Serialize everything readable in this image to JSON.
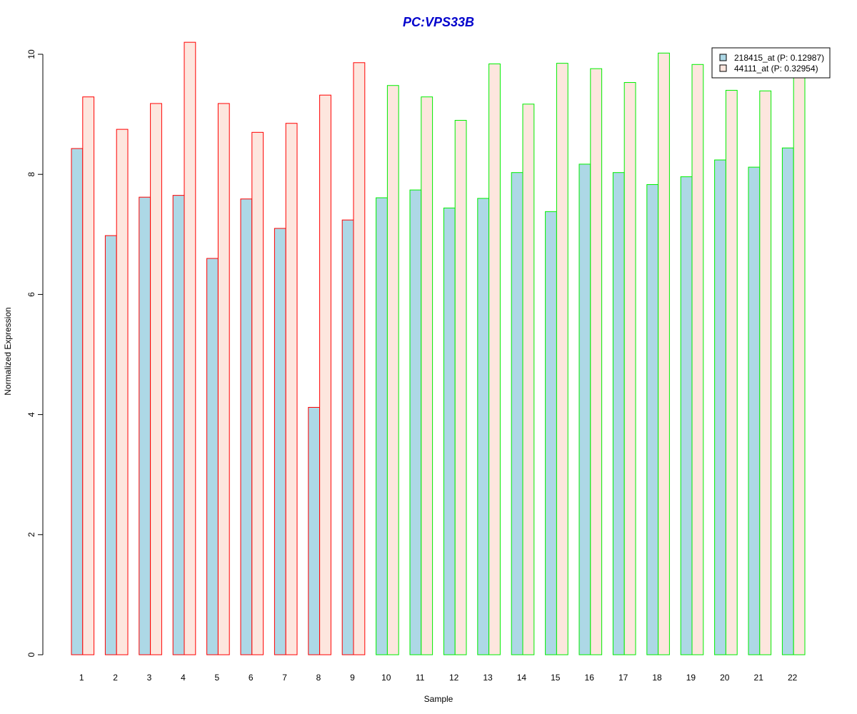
{
  "chart_data": {
    "type": "bar",
    "title": "PC:VPS33B",
    "xlabel": "Sample",
    "ylabel": "Normalized Expression",
    "categories": [
      "1",
      "2",
      "3",
      "4",
      "5",
      "6",
      "7",
      "8",
      "9",
      "10",
      "11",
      "12",
      "13",
      "14",
      "15",
      "16",
      "17",
      "18",
      "19",
      "20",
      "21",
      "22"
    ],
    "series": [
      {
        "name": "218415_at (P: 0.12987)",
        "fill": "#add8e6",
        "values": [
          8.43,
          6.98,
          7.62,
          7.65,
          6.6,
          7.59,
          7.1,
          4.12,
          7.24,
          7.61,
          7.74,
          7.44,
          7.6,
          8.03,
          7.38,
          8.17,
          8.03,
          7.83,
          7.96,
          8.24,
          8.12,
          8.44
        ]
      },
      {
        "name": "44111_at (P: 0.32954)",
        "fill": "#fde6de",
        "values": [
          9.29,
          8.75,
          9.18,
          10.2,
          9.18,
          8.7,
          8.85,
          9.32,
          9.86,
          9.48,
          9.29,
          8.9,
          9.84,
          9.17,
          9.85,
          9.76,
          9.53,
          10.02,
          9.83,
          9.4,
          9.39,
          9.66
        ]
      }
    ],
    "group_border_colors": [
      "#ff0000",
      "#ff0000",
      "#ff0000",
      "#ff0000",
      "#ff0000",
      "#ff0000",
      "#ff0000",
      "#ff0000",
      "#ff0000",
      "#00ee00",
      "#00ee00",
      "#00ee00",
      "#00ee00",
      "#00ee00",
      "#00ee00",
      "#00ee00",
      "#00ee00",
      "#00ee00",
      "#00ee00",
      "#00ee00",
      "#00ee00",
      "#00ee00"
    ],
    "ylim": [
      0,
      10
    ],
    "yticks": [
      0,
      2,
      4,
      6,
      8,
      10
    ],
    "grid": false,
    "legend_position": "top-right",
    "title_color": "#0000cc"
  }
}
